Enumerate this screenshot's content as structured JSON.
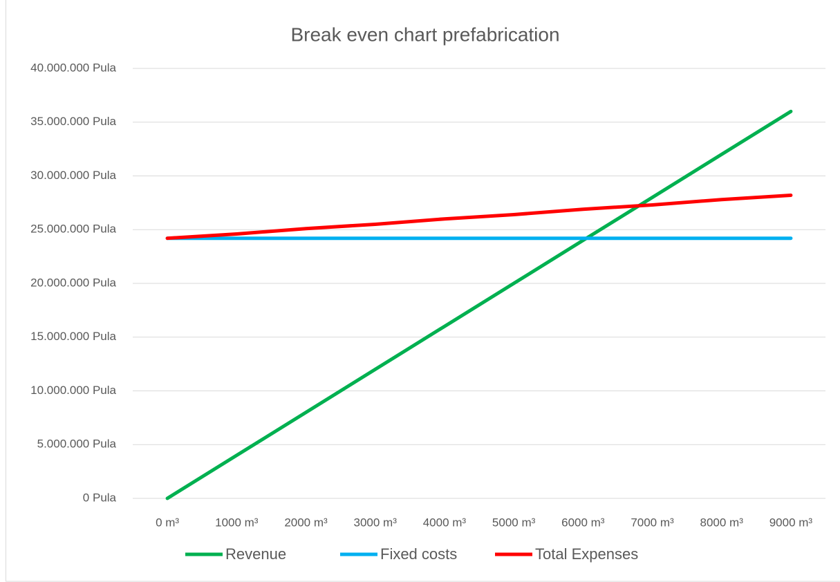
{
  "chart_data": {
    "type": "line",
    "title": "Break even chart prefabrication",
    "categories": [
      "0 m³",
      "1000 m³",
      "2000 m³",
      "3000 m³",
      "4000 m³",
      "5000 m³",
      "6000 m³",
      "7000 m³",
      "8000 m³",
      "9000 m³"
    ],
    "series": [
      {
        "name": "Revenue",
        "color": "#00b050",
        "values": [
          0,
          4000000,
          8000000,
          12000000,
          16000000,
          20000000,
          24000000,
          28000000,
          32000000,
          36000000
        ]
      },
      {
        "name": "Fixed costs",
        "color": "#00b0f0",
        "values": [
          24200000,
          24200000,
          24200000,
          24200000,
          24200000,
          24200000,
          24200000,
          24200000,
          24200000,
          24200000
        ]
      },
      {
        "name": "Total Expenses",
        "color": "#ff0000",
        "values": [
          24200000,
          24600000,
          25100000,
          25500000,
          26000000,
          26400000,
          26900000,
          27300000,
          27800000,
          28200000
        ]
      }
    ],
    "ylim": [
      0,
      40000000
    ],
    "yticks": [
      {
        "value": 0,
        "label": "0 Pula"
      },
      {
        "value": 5000000,
        "label": "5.000.000 Pula"
      },
      {
        "value": 10000000,
        "label": "10.000.000 Pula"
      },
      {
        "value": 15000000,
        "label": "15.000.000 Pula"
      },
      {
        "value": 20000000,
        "label": "20.000.000 Pula"
      },
      {
        "value": 25000000,
        "label": "25.000.000 Pula"
      },
      {
        "value": 30000000,
        "label": "30.000.000 Pula"
      },
      {
        "value": 35000000,
        "label": "35.000.000 Pula"
      },
      {
        "value": 40000000,
        "label": "40.000.000 Pula"
      }
    ],
    "grid": true,
    "legend": "bottom"
  }
}
